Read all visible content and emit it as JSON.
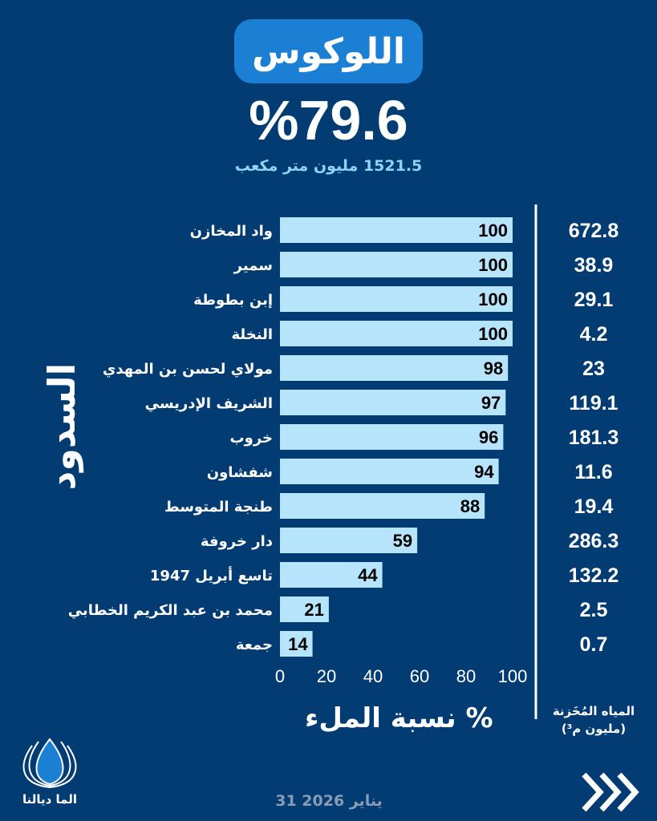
{
  "header": {
    "title": "اللوكوس",
    "percentage": "%79.6",
    "volume": "1521.5 مليون متر مكعب"
  },
  "side_label": "السدود",
  "value_header": {
    "line1": "المياه المُخَزنة",
    "line2": "(مليون م³)"
  },
  "footer": {
    "date": "31 يناير 2026",
    "logo_text": "الما ديالنا"
  },
  "colors": {
    "background": "#033c73",
    "bar": "#b5e4fb",
    "pill": "#1b7fd4"
  },
  "chart_data": {
    "type": "bar",
    "orientation": "horizontal",
    "xlabel": "نسبة الملء %",
    "xlim": [
      0,
      100
    ],
    "xticks": [
      "0",
      "20",
      "40",
      "60",
      "80",
      "100"
    ],
    "categories": [
      "واد المخازن",
      "سمير",
      "إبن بطوطة",
      "النخلة",
      "مولاي لحسن بن المهدي",
      "الشريف الإدريسي",
      "خروب",
      "شفشاون",
      "طنجة المتوسط",
      "دار خروفة",
      "تاسع أبريل 1947",
      "محمد بن عبد الكريم الخطابي",
      "جمعة"
    ],
    "values": [
      100,
      100,
      100,
      100,
      98,
      97,
      96,
      94,
      88,
      59,
      44,
      21,
      14
    ],
    "stored_volume": [
      "672.8",
      "38.9",
      "29.1",
      "4.2",
      "23",
      "119.1",
      "181.3",
      "11.6",
      "19.4",
      "286.3",
      "132.2",
      "2.5",
      "0.7"
    ]
  }
}
